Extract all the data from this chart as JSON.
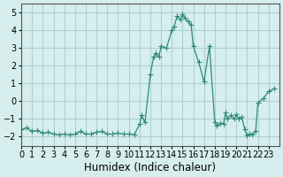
{
  "x": [
    0,
    0.5,
    1,
    1.5,
    2,
    2.5,
    3,
    3.5,
    4,
    4.5,
    5,
    5.5,
    6,
    6.5,
    7,
    7.5,
    8,
    8.5,
    9,
    9.5,
    10,
    10.5,
    11,
    11.2,
    11.5,
    12,
    12.3,
    12.5,
    12.8,
    13,
    13.5,
    14,
    14.2,
    14.5,
    14.8,
    15,
    15.2,
    15.5,
    15.8,
    16,
    16.5,
    17,
    17.5,
    18,
    18.2,
    18.5,
    18.8,
    19,
    19.2,
    19.5,
    19.8,
    20,
    20.2,
    20.5,
    20.8,
    21,
    21.2,
    21.5,
    21.8,
    22,
    22.5,
    23,
    23.5
  ],
  "y": [
    -1.6,
    -1.5,
    -1.7,
    -1.65,
    -1.8,
    -1.75,
    -1.85,
    -1.9,
    -1.85,
    -1.9,
    -1.85,
    -1.7,
    -1.85,
    -1.85,
    -1.75,
    -1.7,
    -1.85,
    -1.85,
    -1.8,
    -1.85,
    -1.85,
    -1.9,
    -1.3,
    -0.8,
    -1.2,
    1.5,
    2.5,
    2.7,
    2.5,
    3.1,
    3.0,
    4.0,
    4.2,
    4.8,
    4.6,
    4.9,
    4.7,
    4.5,
    4.3,
    3.1,
    2.2,
    1.1,
    3.1,
    -1.2,
    -1.4,
    -1.25,
    -1.3,
    -0.65,
    -1.0,
    -0.8,
    -1.0,
    -0.75,
    -1.0,
    -0.9,
    -1.6,
    -1.95,
    -1.85,
    -1.9,
    -1.7,
    -0.1,
    0.15,
    0.55,
    0.7
  ],
  "line_color": "#2e8b74",
  "marker_color": "#2e8b74",
  "bg_color": "#d6eeee",
  "grid_color": "#b0d0d0",
  "xlabel": "Humidex (Indice chaleur)",
  "xlim": [
    0,
    24
  ],
  "ylim": [
    -2.5,
    5.5
  ],
  "yticks": [
    -2,
    -1,
    0,
    1,
    2,
    3,
    4,
    5
  ],
  "xticks": [
    0,
    1,
    2,
    3,
    4,
    5,
    6,
    7,
    8,
    9,
    10,
    11,
    12,
    13,
    14,
    15,
    16,
    17,
    18,
    19,
    20,
    21,
    22,
    23
  ],
  "xlabel_fontsize": 8.5,
  "tick_fontsize": 7
}
